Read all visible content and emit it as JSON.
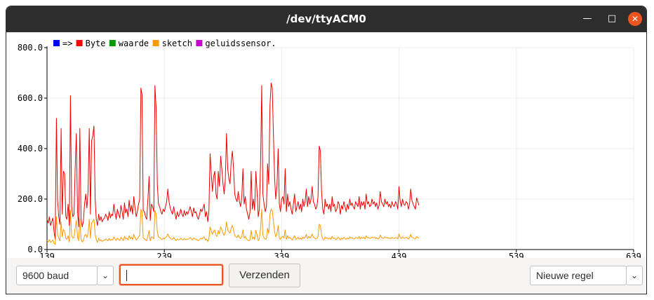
{
  "window": {
    "title": "/dev/ttyACM0",
    "minimize_glyph": "—",
    "maximize_glyph": "□",
    "close_glyph": "✕"
  },
  "plotter": {
    "legend": [
      {
        "label": "=>",
        "color": "#0000ff"
      },
      {
        "label": "Byte",
        "color": "#ff0000"
      },
      {
        "label": "waarde",
        "color": "#009900"
      },
      {
        "label": "sketch",
        "color": "#ff9900"
      },
      {
        "label": "geluidssensor.",
        "color": "#cc00cc"
      }
    ]
  },
  "chart_data": {
    "type": "line",
    "xlim": [
      139,
      639
    ],
    "ylim": [
      0,
      800
    ],
    "x_ticks": [
      "139",
      "239",
      "339",
      "439",
      "539",
      "639"
    ],
    "y_ticks": [
      "0.0",
      "200.0",
      "400.0",
      "600.0",
      "800.0"
    ],
    "x_start": 139,
    "grid": true,
    "legend_position": "top-left",
    "series": [
      {
        "name": "Byte",
        "color": "#ee0000",
        "values": [
          120,
          105,
          130,
          95,
          110,
          125,
          70,
          40,
          520,
          200,
          130,
          100,
          480,
          140,
          310,
          300,
          130,
          120,
          180,
          95,
          610,
          170,
          130,
          140,
          320,
          460,
          150,
          90,
          480,
          120,
          90,
          110,
          180,
          220,
          165,
          230,
          480,
          140,
          430,
          450,
          490,
          200,
          120,
          95,
          140,
          115,
          130,
          110,
          120,
          125,
          140,
          130,
          115,
          150,
          125,
          140,
          135,
          180,
          145,
          120,
          160,
          140,
          125,
          175,
          150,
          120,
          185,
          145,
          160,
          130,
          195,
          150,
          175,
          140,
          210,
          165,
          130,
          150,
          180,
          200,
          640,
          615,
          155,
          150,
          130,
          120,
          200,
          290,
          115,
          180,
          170,
          150,
          650,
          560,
          260,
          180,
          170,
          150,
          140,
          160,
          150,
          170,
          190,
          240,
          190,
          165,
          150,
          140,
          170,
          145,
          120,
          150,
          130,
          140,
          160,
          140,
          130,
          155,
          135,
          150,
          140,
          155,
          170,
          150,
          130,
          165,
          145,
          150,
          130,
          120,
          140,
          160,
          150,
          165,
          180,
          130,
          150,
          110,
          150,
          380,
          300,
          230,
          290,
          310,
          220,
          200,
          310,
          250,
          370,
          320,
          260,
          220,
          280,
          460,
          320,
          280,
          260,
          350,
          390,
          320,
          220,
          200,
          190,
          230,
          190,
          170,
          210,
          320,
          180,
          210,
          160,
          140,
          120,
          150,
          310,
          160,
          200,
          155,
          310,
          230,
          130,
          160,
          340,
          650,
          220,
          180,
          150,
          170,
          340,
          260,
          570,
          660,
          640,
          450,
          280,
          200,
          250,
          400,
          180,
          150,
          200,
          210,
          180,
          320,
          150,
          220,
          170,
          190,
          160,
          140,
          180,
          220,
          150,
          170,
          190,
          160,
          180,
          150,
          200,
          170,
          190,
          240,
          170,
          210,
          180,
          200,
          250,
          190,
          180,
          160,
          170,
          210,
          410,
          390,
          230,
          160,
          140,
          200,
          170,
          180,
          160,
          180,
          150,
          210,
          170,
          180,
          150,
          160,
          190,
          180,
          140,
          175,
          160,
          190,
          170,
          150,
          180,
          160,
          200,
          175,
          185,
          170,
          160,
          190,
          180,
          170,
          210,
          160,
          190,
          175,
          190,
          160,
          220,
          180,
          190,
          170,
          175,
          200,
          180,
          190,
          170,
          185,
          160,
          175,
          230,
          190,
          180,
          170,
          200,
          180,
          190,
          170,
          180,
          165,
          190,
          175,
          170,
          190,
          180,
          160,
          250,
          190,
          170,
          200,
          180,
          175,
          190,
          185,
          160,
          180,
          240,
          195,
          180,
          170,
          160,
          205,
          190,
          175
        ]
      },
      {
        "name": "sketch",
        "color": "#ff9900",
        "values": [
          35,
          30,
          40,
          28,
          32,
          38,
          25,
          20,
          130,
          60,
          45,
          35,
          110,
          50,
          80,
          70,
          45,
          40,
          55,
          30,
          155,
          55,
          45,
          48,
          85,
          115,
          50,
          35,
          120,
          40,
          30,
          35,
          55,
          60,
          48,
          62,
          120,
          45,
          105,
          110,
          120,
          60,
          40,
          28,
          45,
          35,
          38,
          32,
          36,
          37,
          42,
          38,
          34,
          44,
          36,
          40,
          38,
          50,
          42,
          36,
          45,
          40,
          36,
          48,
          42,
          35,
          52,
          42,
          45,
          38,
          55,
          42,
          50,
          40,
          60,
          47,
          38,
          42,
          50,
          55,
          160,
          150,
          45,
          43,
          38,
          35,
          55,
          75,
          34,
          50,
          48,
          42,
          155,
          140,
          70,
          50,
          48,
          42,
          40,
          45,
          42,
          48,
          52,
          62,
          50,
          45,
          42,
          40,
          48,
          41,
          35,
          42,
          38,
          40,
          45,
          40,
          38,
          44,
          39,
          42,
          40,
          44,
          48,
          42,
          38,
          46,
          41,
          42,
          38,
          35,
          40,
          45,
          42,
          46,
          50,
          38,
          42,
          32,
          42,
          90,
          75,
          60,
          72,
          78,
          56,
          52,
          76,
          62,
          90,
          78,
          64,
          56,
          70,
          110,
          78,
          70,
          65,
          85,
          95,
          78,
          55,
          50,
          48,
          58,
          48,
          44,
          52,
          78,
          46,
          52,
          42,
          38,
          34,
          40,
          76,
          42,
          50,
          40,
          76,
          58,
          35,
          42,
          84,
          160,
          56,
          46,
          40,
          44,
          84,
          64,
          140,
          160,
          155,
          110,
          70,
          50,
          62,
          95,
          46,
          40,
          50,
          52,
          46,
          78,
          40,
          55,
          44,
          48,
          42,
          38,
          46,
          55,
          40,
          44,
          48,
          42,
          46,
          40,
          50,
          44,
          48,
          60,
          44,
          52,
          46,
          50,
          62,
          48,
          46,
          42,
          44,
          52,
          100,
          95,
          58,
          42,
          38,
          50,
          44,
          46,
          42,
          46,
          40,
          52,
          44,
          46,
          40,
          42,
          48,
          46,
          38,
          45,
          42,
          48,
          44,
          40,
          46,
          42,
          50,
          45,
          47,
          44,
          42,
          48,
          46,
          44,
          52,
          42,
          48,
          45,
          48,
          42,
          55,
          46,
          48,
          44,
          45,
          50,
          46,
          48,
          44,
          47,
          42,
          45,
          57,
          48,
          46,
          44,
          50,
          46,
          48,
          44,
          46,
          43,
          48,
          45,
          44,
          48,
          46,
          42,
          62,
          48,
          44,
          50,
          46,
          45,
          48,
          47,
          42,
          46,
          60,
          49,
          46,
          44,
          42,
          51,
          48,
          45
        ]
      }
    ]
  },
  "controls": {
    "baud": {
      "value": "9600 baud",
      "arrow": "⌄"
    },
    "send_input": {
      "value": ""
    },
    "send_button": {
      "label": "Verzenden"
    },
    "line_ending": {
      "value": "Nieuwe regel",
      "arrow": "⌄"
    }
  }
}
